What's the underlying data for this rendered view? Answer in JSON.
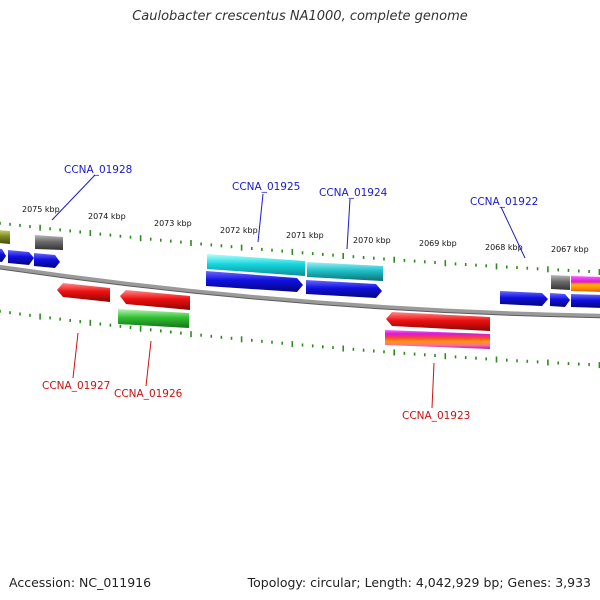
{
  "title": "Caulobacter crescentus NA1000, complete genome",
  "footer": {
    "accession": "Accession: NC_011916",
    "summary": "Topology: circular; Length: 4,042,929 bp; Genes: 3,933"
  },
  "colors": {
    "backbone": "#888888",
    "tick": "#2e8b1e",
    "label_forward": "#1a1acc",
    "label_reverse": "#cc1111",
    "blue": "#1010e0",
    "cyan": "#18d8e0",
    "teal": "#20c0c8",
    "gray": "#6a6a6a",
    "red": "#ee1010",
    "green": "#30c030",
    "olive": "#7f8a20",
    "magenta": "#d81ad8",
    "orange": "#ff9900"
  },
  "scale_labels": [
    "2075 kbp",
    "2074 kbp",
    "2073 kbp",
    "2072 kbp",
    "2071 kbp",
    "2070 kbp",
    "2069 kbp",
    "2068 kbp",
    "2067 kbp"
  ],
  "gene_labels": {
    "forward": [
      "CCNA_01928",
      "CCNA_01925",
      "CCNA_01924",
      "CCNA_01922"
    ],
    "reverse": [
      "CCNA_01927",
      "CCNA_01926",
      "CCNA_01923"
    ]
  }
}
